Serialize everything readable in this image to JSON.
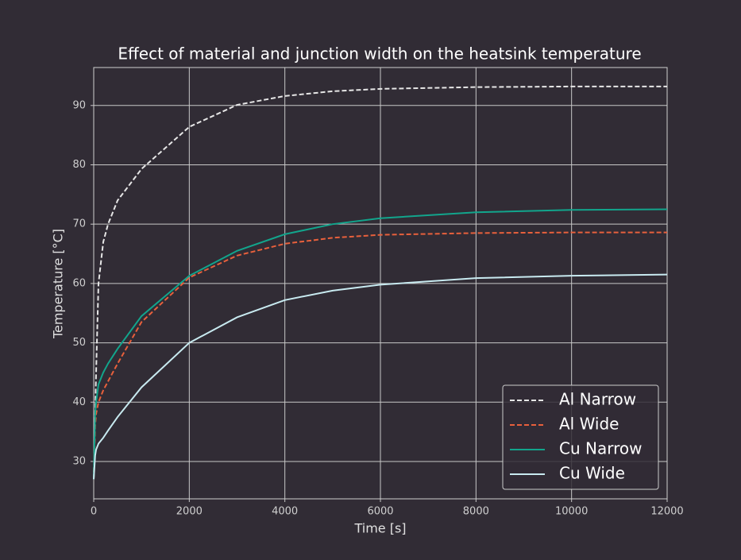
{
  "chart_data": {
    "type": "line",
    "title": "Effect of material and junction width on the heatsink temperature",
    "x_label": "Time [s]",
    "y_label": "Temperature [°C]",
    "x": [
      0,
      30,
      50,
      100,
      200,
      300,
      500,
      1000,
      2000,
      3000,
      4000,
      5000,
      6000,
      8000,
      10000,
      12000
    ],
    "series": [
      {
        "name": "Al Narrow",
        "color": "#e6e6e6",
        "dashed": true,
        "values": [
          27,
          38,
          45,
          60,
          67,
          70,
          74,
          79.3,
          86.4,
          90.1,
          91.6,
          92.4,
          92.8,
          93.1,
          93.2,
          93.2
        ]
      },
      {
        "name": "Al Wide",
        "color": "#e8603c",
        "dashed": true,
        "values": [
          27,
          36,
          38,
          40,
          42,
          43.5,
          46.5,
          53.5,
          61,
          64.7,
          66.7,
          67.7,
          68.2,
          68.5,
          68.6,
          68.6
        ]
      },
      {
        "name": "Cu Narrow",
        "color": "#12a58c",
        "dashed": false,
        "values": [
          27,
          38,
          40,
          43,
          45,
          46.5,
          49,
          54.5,
          61.3,
          65.5,
          68.3,
          70,
          71,
          72,
          72.4,
          72.5
        ]
      },
      {
        "name": "Cu Wide",
        "color": "#c8eaf0",
        "dashed": false,
        "values": [
          27,
          31,
          32,
          33,
          34,
          35.2,
          37.5,
          42.5,
          50,
          54.3,
          57.2,
          58.8,
          59.8,
          60.9,
          61.3,
          61.5
        ]
      }
    ],
    "xlim": [
      0,
      12000
    ],
    "xticks": [
      0,
      2000,
      4000,
      6000,
      8000,
      10000,
      12000
    ],
    "ylim": [
      23.7,
      96.4
    ],
    "yticks": [
      30,
      40,
      50,
      60,
      70,
      80,
      90
    ],
    "grid": true,
    "legend_loc": "lower right"
  }
}
